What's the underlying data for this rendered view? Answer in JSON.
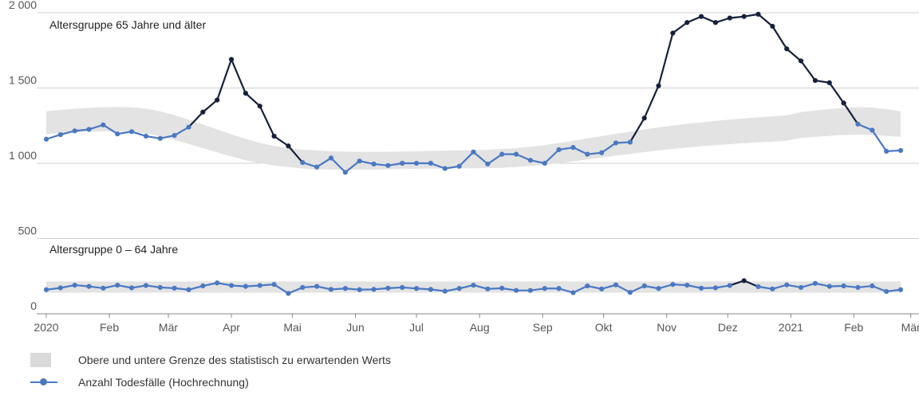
{
  "chart_data": {
    "type": "line",
    "y_ticks": [
      0,
      500,
      1000,
      1500,
      2000
    ],
    "y_tick_labels": [
      "0",
      "500",
      "1 000",
      "1 500",
      "2 000"
    ],
    "ylim": [
      0,
      2000
    ],
    "x_tick_labels": [
      {
        "label": "2020",
        "week": 0
      },
      {
        "label": "Feb",
        "week": 4.43
      },
      {
        "label": "Mär",
        "week": 8.57
      },
      {
        "label": "Apr",
        "week": 13
      },
      {
        "label": "Mai",
        "week": 17.29
      },
      {
        "label": "Jun",
        "week": 21.71
      },
      {
        "label": "Jul",
        "week": 26
      },
      {
        "label": "Aug",
        "week": 30.43
      },
      {
        "label": "Sep",
        "week": 34.86
      },
      {
        "label": "Okt",
        "week": 39.14
      },
      {
        "label": "Nov",
        "week": 43.57
      },
      {
        "label": "Dez",
        "week": 47.86
      },
      {
        "label": "2021",
        "week": 52.29
      },
      {
        "label": "Feb",
        "week": 56.71
      },
      {
        "label": "Mär",
        "week": 60.71
      }
    ],
    "panels": [
      {
        "label": "Altersgruppe 65 Jahre und älter",
        "upper": [
          1345,
          1355,
          1362,
          1368,
          1372,
          1374,
          1372,
          1363,
          1345,
          1320,
          1290,
          1258,
          1225,
          1192,
          1162,
          1135,
          1115,
          1100,
          1090,
          1085,
          1080,
          1077,
          1075,
          1075,
          1076,
          1078,
          1080,
          1082,
          1084,
          1085,
          1087,
          1090,
          1095,
          1100,
          1110,
          1120,
          1135,
          1150,
          1165,
          1180,
          1195,
          1210,
          1225,
          1238,
          1250,
          1262,
          1272,
          1282,
          1290,
          1298,
          1305,
          1312,
          1318,
          1340,
          1350,
          1360,
          1368,
          1372,
          1370,
          1360,
          1345
        ],
        "lower": [
          1195,
          1200,
          1205,
          1210,
          1212,
          1212,
          1208,
          1198,
          1180,
          1155,
          1128,
          1100,
          1072,
          1045,
          1020,
          1000,
          985,
          975,
          965,
          960,
          958,
          957,
          957,
          958,
          960,
          962,
          963,
          964,
          965,
          966,
          967,
          968,
          970,
          975,
          982,
          990,
          1000,
          1012,
          1025,
          1038,
          1050,
          1062,
          1074,
          1085,
          1095,
          1105,
          1113,
          1120,
          1127,
          1133,
          1138,
          1144,
          1150,
          1168,
          1175,
          1182,
          1188,
          1190,
          1188,
          1182,
          1175
        ],
        "values": [
          1160,
          1190,
          1215,
          1225,
          1255,
          1195,
          1210,
          1180,
          1165,
          1185,
          1240,
          1340,
          1420,
          1690,
          1465,
          1380,
          1180,
          1115,
          1005,
          975,
          1035,
          940,
          1015,
          995,
          985,
          1000,
          1000,
          1000,
          965,
          980,
          1075,
          995,
          1060,
          1060,
          1020,
          1000,
          1090,
          1105,
          1060,
          1070,
          1135,
          1140,
          1300,
          1515,
          1865,
          1935,
          1975,
          1935,
          1965,
          1975,
          1990,
          1910,
          1760,
          1680,
          1550,
          1535,
          1400,
          1260,
          1220,
          1080,
          1085
        ]
      },
      {
        "label": "Altersgruppe 0 – 64 Jahre",
        "upper": [
          215,
          215,
          215,
          215,
          215,
          215,
          215,
          215,
          215,
          215,
          215,
          215,
          215,
          215,
          215,
          215,
          215,
          215,
          215,
          215,
          215,
          215,
          215,
          215,
          215,
          215,
          215,
          215,
          215,
          215,
          215,
          215,
          215,
          215,
          215,
          215,
          215,
          215,
          215,
          215,
          215,
          215,
          215,
          215,
          215,
          215,
          215,
          215,
          215,
          215,
          215,
          215,
          215,
          215,
          215,
          215,
          215,
          215,
          215,
          215,
          215
        ],
        "lower": [
          140,
          140,
          140,
          140,
          140,
          140,
          140,
          140,
          140,
          140,
          140,
          140,
          140,
          140,
          140,
          140,
          140,
          140,
          140,
          140,
          140,
          140,
          140,
          140,
          140,
          140,
          140,
          140,
          140,
          140,
          140,
          140,
          140,
          140,
          140,
          140,
          140,
          140,
          140,
          140,
          140,
          140,
          140,
          140,
          140,
          140,
          140,
          140,
          140,
          140,
          140,
          140,
          140,
          140,
          140,
          140,
          140,
          140,
          140,
          140,
          140
        ],
        "values": [
          160,
          172,
          190,
          182,
          170,
          190,
          172,
          188,
          175,
          170,
          160,
          185,
          205,
          188,
          182,
          188,
          195,
          135,
          175,
          182,
          162,
          168,
          160,
          162,
          170,
          175,
          168,
          162,
          150,
          168,
          190,
          165,
          170,
          155,
          155,
          168,
          168,
          140,
          185,
          165,
          192,
          142,
          185,
          168,
          195,
          190,
          170,
          172,
          188,
          220,
          180,
          165,
          192,
          175,
          202,
          182,
          185,
          175,
          185,
          148,
          160
        ]
      }
    ],
    "legend": [
      {
        "label": "Obere und untere Grenze des statistisch zu erwartenden Werts",
        "swatch": "band"
      },
      {
        "label": "Anzahl Todesfälle (Hochrechnung)",
        "swatch": "line"
      }
    ],
    "colors": {
      "normal_line": "#4a78c2",
      "excess_line": "#15213b",
      "band": "#e3e3e3",
      "grid": "#cfcfcf"
    }
  }
}
